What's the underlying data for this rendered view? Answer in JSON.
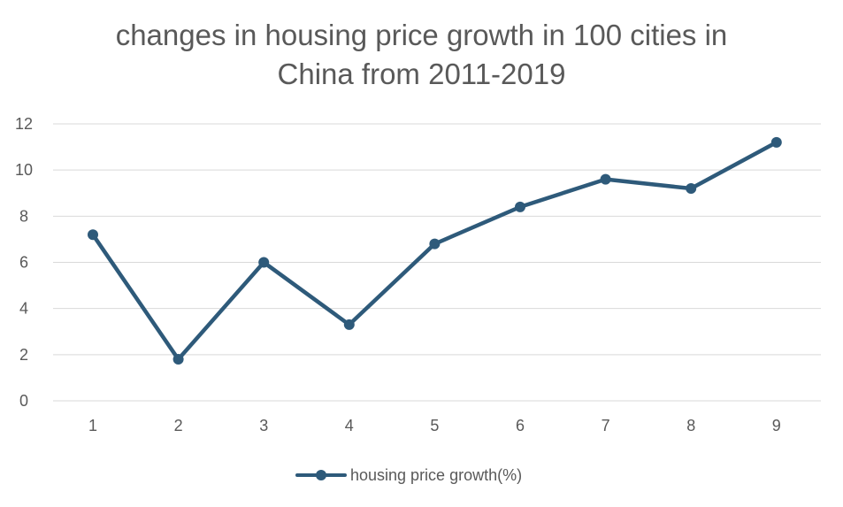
{
  "chart_data": {
    "type": "line",
    "title_lines": [
      "changes in housing price growth in 100 cities in",
      "China from 2011-2019"
    ],
    "categories": [
      "1",
      "2",
      "3",
      "4",
      "5",
      "6",
      "7",
      "8",
      "9"
    ],
    "series": [
      {
        "name": "housing price growth(%)",
        "values": [
          7.2,
          1.8,
          6.0,
          3.3,
          6.8,
          8.4,
          9.6,
          9.2,
          11.2
        ]
      }
    ],
    "yticks": [
      "0",
      "2",
      "4",
      "6",
      "8",
      "10",
      "12"
    ],
    "ylim": [
      0,
      12
    ],
    "grid": true,
    "legend": "bottom",
    "colors": {
      "series": "#2e5a7a",
      "grid": "#d9d9d9",
      "text": "#595959"
    }
  }
}
